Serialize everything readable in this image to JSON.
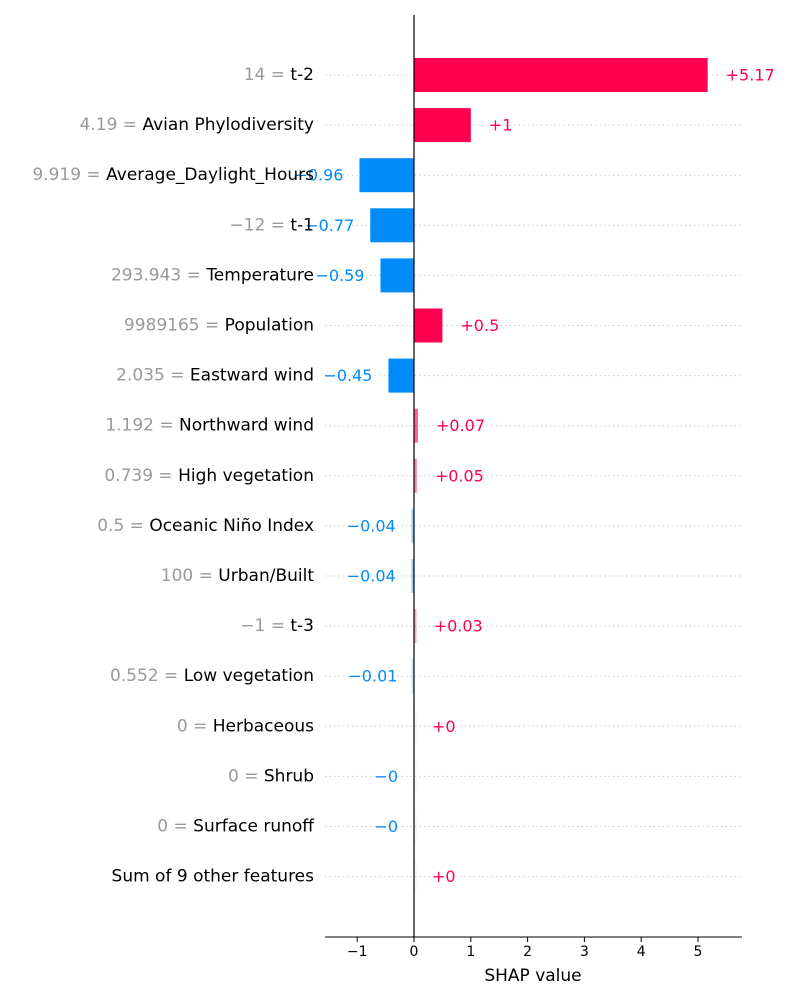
{
  "chart_data": {
    "type": "bar",
    "orientation": "horizontal",
    "xlabel": "SHAP value",
    "xlim": [
      -1.6,
      5.8
    ],
    "xticks": [
      -1,
      0,
      1,
      2,
      3,
      4,
      5
    ],
    "xtick_labels": [
      "−1",
      "0",
      "1",
      "2",
      "3",
      "4",
      "5"
    ],
    "colors": {
      "positive": "#ff0051",
      "negative": "#008bfb",
      "zero": "#cccccc",
      "feature_value": "#999999",
      "feature_name": "#000000",
      "grid": "#cccccc"
    },
    "features": [
      {
        "value": "14",
        "name": "t-2",
        "shap": 5.17,
        "label": "+5.17"
      },
      {
        "value": "4.19",
        "name": "Avian Phylodiversity",
        "shap": 1.0,
        "label": "+1"
      },
      {
        "value": "9.919",
        "name": "Average_Daylight_Hours",
        "shap": -0.96,
        "label": "−0.96"
      },
      {
        "value": "−12",
        "name": "t-1",
        "shap": -0.77,
        "label": "−0.77"
      },
      {
        "value": "293.943",
        "name": "Temperature",
        "shap": -0.59,
        "label": "−0.59"
      },
      {
        "value": "9989165",
        "name": "Population",
        "shap": 0.5,
        "label": "+0.5"
      },
      {
        "value": "2.035",
        "name": "Eastward wind",
        "shap": -0.45,
        "label": "−0.45"
      },
      {
        "value": "1.192",
        "name": "Northward wind",
        "shap": 0.07,
        "label": "+0.07"
      },
      {
        "value": "0.739",
        "name": "High vegetation",
        "shap": 0.05,
        "label": "+0.05"
      },
      {
        "value": "0.5",
        "name": "Oceanic Niño Index",
        "shap": -0.04,
        "label": "−0.04"
      },
      {
        "value": "100",
        "name": "Urban/Built",
        "shap": -0.04,
        "label": "−0.04"
      },
      {
        "value": "−1",
        "name": "t-3",
        "shap": 0.03,
        "label": "+0.03"
      },
      {
        "value": "0.552",
        "name": "Low vegetation",
        "shap": -0.01,
        "label": "−0.01"
      },
      {
        "value": "0",
        "name": "Herbaceous",
        "shap": 0.0,
        "label": "+0"
      },
      {
        "value": "0",
        "name": "Shrub",
        "shap": -0.0,
        "label": "−0"
      },
      {
        "value": "0",
        "name": "Surface runoff",
        "shap": -0.0,
        "label": "−0"
      },
      {
        "value": "",
        "name": "Sum of 9 other features",
        "shap": 0.0,
        "label": "+0"
      }
    ]
  }
}
